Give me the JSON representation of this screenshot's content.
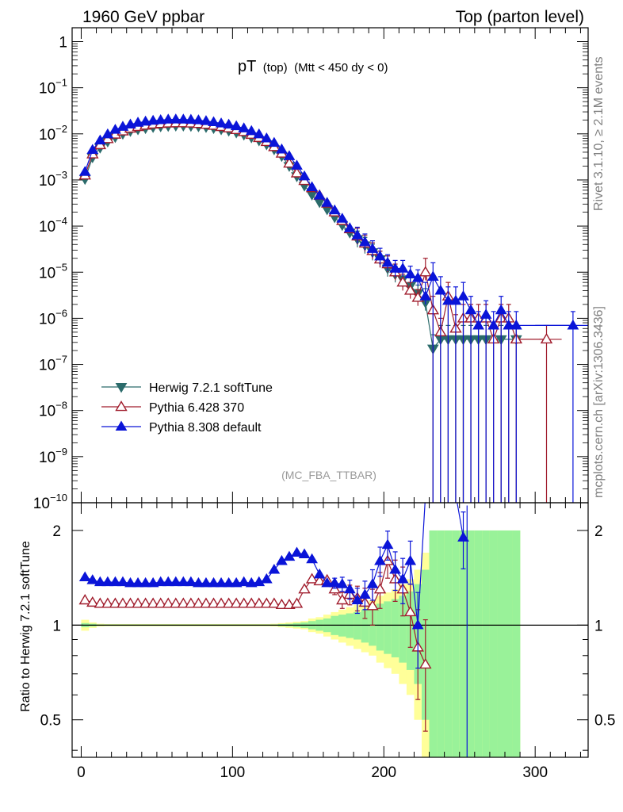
{
  "header": {
    "left": "1960 GeV ppbar",
    "right": "Top (parton level)"
  },
  "plot_title": {
    "main": "pT",
    "sub1": "(top)",
    "sub2": "(Mtt < 450 dy < 0)"
  },
  "analysis_tag": "(MC_FBA_TTBAR)",
  "side_labels": {
    "rivet": "Rivet 3.1.10, ≥ 2.1M events",
    "mcplots": "mcplots.cern.ch [arXiv:1306.3436]"
  },
  "ratio_ylabel": "Ratio to Herwig 7.2.1 softTune",
  "colors": {
    "herwig": "#2b6b6b",
    "pythia6": "#a01c2c",
    "pythia8": "#0a14d8",
    "band_inner": "#99f299",
    "band_outer": "#ffff99"
  },
  "chart_data": {
    "type": "line",
    "xlim": [
      -6,
      335
    ],
    "main_ylim": [
      1e-10,
      2
    ],
    "ratio_ylim": [
      0.38,
      2.45
    ],
    "main_ytick_values": [
      1,
      0.1,
      0.01,
      0.001,
      0.0001,
      1e-05,
      1e-06,
      1e-07,
      1e-08,
      1e-09,
      1e-10
    ],
    "main_ytick_labels": [
      {
        "base": "1",
        "exp": ""
      },
      {
        "base": "10",
        "exp": "−1"
      },
      {
        "base": "10",
        "exp": "−2"
      },
      {
        "base": "10",
        "exp": "−3"
      },
      {
        "base": "10",
        "exp": "−4"
      },
      {
        "base": "10",
        "exp": "−5"
      },
      {
        "base": "10",
        "exp": "−6"
      },
      {
        "base": "10",
        "exp": "−7"
      },
      {
        "base": "10",
        "exp": "−8"
      },
      {
        "base": "10",
        "exp": "−9"
      },
      {
        "base": "10",
        "exp": "−10"
      }
    ],
    "ratio_ytick_values": [
      0.5,
      1,
      2
    ],
    "ratio_ytick_labels": [
      "0.5",
      "1",
      "2"
    ],
    "xticks": [
      0,
      100,
      200,
      300
    ],
    "xtick_labels": [
      "0",
      "100",
      "200",
      "300"
    ],
    "x": [
      2.5,
      7.5,
      12.5,
      17.5,
      22.5,
      27.5,
      32.5,
      37.5,
      42.5,
      47.5,
      52.5,
      57.5,
      62.5,
      67.5,
      72.5,
      77.5,
      82.5,
      87.5,
      92.5,
      97.5,
      102.5,
      107.5,
      112.5,
      117.5,
      122.5,
      127.5,
      132.5,
      137.5,
      142.5,
      147.5,
      152.5,
      157.5,
      162.5,
      167.5,
      172.5,
      177.5,
      182.5,
      187.5,
      192.5,
      197.5,
      202.5,
      207.5,
      212.5,
      217.5,
      222.5,
      227.5,
      232.5,
      237.5,
      242.5,
      247.5,
      252.5,
      257.5,
      262.5,
      267.5,
      272.5,
      277.5,
      282.5,
      287.5
    ],
    "legend": [
      {
        "key": "herwig",
        "label": "Herwig 7.2.1 softTune"
      },
      {
        "key": "pythia6",
        "label": "Pythia 6.428 370"
      },
      {
        "key": "pythia8",
        "label": "Pythia 8.308 default"
      }
    ],
    "series": [
      {
        "key": "herwig",
        "name": "Herwig 7.2.1 softTune",
        "marker": "triangle-down",
        "values": [
          0.00105,
          0.0031,
          0.005,
          0.0068,
          0.0085,
          0.01,
          0.0115,
          0.0125,
          0.0133,
          0.014,
          0.0145,
          0.0148,
          0.015,
          0.015,
          0.0148,
          0.0145,
          0.014,
          0.0133,
          0.0125,
          0.0117,
          0.0107,
          0.0096,
          0.0084,
          0.0072,
          0.0059,
          0.0046,
          0.0033,
          0.002,
          0.0012,
          0.00075,
          0.00048,
          0.00033,
          0.00023,
          0.000155,
          0.000105,
          7.2e-05,
          5.2e-05,
          3.8e-05,
          2.7e-05,
          1.9e-05,
          1.2e-05,
          9e-06,
          7e-06,
          5e-06,
          3.5e-06,
          2.2e-06,
          2.2e-07,
          3.5e-07,
          3.5e-07,
          3.5e-07,
          3.5e-07,
          3.5e-07,
          3.5e-07,
          3.5e-07,
          null,
          3.5e-07,
          null,
          3.5e-07
        ],
        "ratio": [
          1,
          1,
          1,
          1,
          1,
          1,
          1,
          1,
          1,
          1,
          1,
          1,
          1,
          1,
          1,
          1,
          1,
          1,
          1,
          1,
          1,
          1,
          1,
          1,
          1,
          1,
          1,
          1,
          1,
          1,
          1,
          1,
          1,
          1,
          1,
          1,
          1,
          1,
          1,
          1,
          1,
          1,
          1,
          1,
          1,
          1,
          1,
          1,
          1,
          1,
          1,
          1,
          1,
          1,
          1,
          1,
          1,
          1
        ]
      },
      {
        "key": "pythia6",
        "name": "Pythia 6.428 370",
        "marker": "triangle-up-open",
        "values": [
          0.00126,
          0.00362,
          0.00574,
          0.00774,
          0.0097,
          0.0114,
          0.0131,
          0.0142,
          0.0152,
          0.016,
          0.0165,
          0.0169,
          0.0171,
          0.0171,
          0.0169,
          0.0165,
          0.0159,
          0.0151,
          0.0142,
          0.0133,
          0.0122,
          0.011,
          0.0096,
          0.0082,
          0.0067,
          0.0052,
          0.00376,
          0.00228,
          0.0014,
          0.00096,
          0.00067,
          0.00046,
          0.00031,
          0.0002,
          0.00013,
          8.6e-05,
          6e-05,
          4.2e-05,
          2.9e-05,
          1.9e-05,
          1.5e-05,
          1e-05,
          6e-06,
          4e-06,
          2.8e-06,
          1e-05,
          1.5e-06,
          5e-07,
          3e-06,
          6e-07,
          1e-06,
          1e-06,
          1e-06,
          1e-06,
          3.5e-07,
          1e-06,
          1e-06,
          3.5e-07
        ],
        "extra_points": [
          {
            "x": 307.5,
            "y": 3.5e-07
          }
        ],
        "ratio": [
          1.2,
          1.18,
          1.17,
          1.17,
          1.17,
          1.17,
          1.17,
          1.17,
          1.17,
          1.17,
          1.17,
          1.17,
          1.17,
          1.17,
          1.17,
          1.17,
          1.17,
          1.17,
          1.17,
          1.17,
          1.17,
          1.17,
          1.17,
          1.17,
          1.17,
          1.17,
          1.16,
          1.16,
          1.17,
          1.3,
          1.4,
          1.38,
          1.39,
          1.3,
          1.2,
          1.25,
          1.22,
          1.18,
          1.15,
          1.3,
          1.6,
          1.4,
          1.3,
          1.1,
          0.85,
          0.75
        ]
      },
      {
        "key": "pythia8",
        "name": "Pythia 8.308 default",
        "marker": "triangle-up",
        "values": [
          0.0015,
          0.0045,
          0.0072,
          0.0098,
          0.0123,
          0.0143,
          0.016,
          0.0175,
          0.0185,
          0.0193,
          0.0199,
          0.0205,
          0.0206,
          0.0205,
          0.0202,
          0.0198,
          0.019,
          0.018,
          0.0169,
          0.0159,
          0.0147,
          0.0132,
          0.0115,
          0.0098,
          0.008,
          0.0064,
          0.0046,
          0.0033,
          0.00205,
          0.0012,
          0.0007,
          0.00046,
          0.00032,
          0.00022,
          0.000145,
          9e-05,
          6.3e-05,
          4.5e-05,
          3.2e-05,
          2.2e-05,
          1.6e-05,
          1.2e-05,
          1.2e-05,
          9e-06,
          7.5e-06,
          3e-06,
          8e-06,
          4e-06,
          2.4e-06,
          2.4e-06,
          3e-06,
          1.5e-06,
          7e-07,
          1.2e-06,
          7e-07,
          1.5e-06,
          7e-07,
          7e-07
        ],
        "extra_points": [
          {
            "x": 325,
            "y": 7e-07
          }
        ],
        "ratio": [
          1.42,
          1.39,
          1.37,
          1.37,
          1.37,
          1.37,
          1.36,
          1.36,
          1.36,
          1.36,
          1.37,
          1.37,
          1.37,
          1.37,
          1.37,
          1.36,
          1.36,
          1.36,
          1.36,
          1.36,
          1.36,
          1.37,
          1.36,
          1.37,
          1.4,
          1.5,
          1.6,
          1.65,
          1.7,
          1.68,
          1.62,
          1.45,
          1.36,
          1.36,
          1.35,
          1.3,
          1.2,
          1.25,
          1.35,
          1.6,
          1.8,
          1.5,
          1.4,
          1.6,
          1.0,
          2.6,
          2.6,
          2.6,
          2.6,
          2.6,
          1.9
        ]
      }
    ],
    "bands": {
      "inner": [
        0.015,
        0.01,
        0.005,
        0.005,
        0.005,
        0.005,
        0.005,
        0.005,
        0.005,
        0.005,
        0.005,
        0.005,
        0.005,
        0.005,
        0.005,
        0.005,
        0.005,
        0.005,
        0.005,
        0.005,
        0.005,
        0.005,
        0.005,
        0.005,
        0.005,
        0.005,
        0.008,
        0.01,
        0.015,
        0.02,
        0.03,
        0.04,
        0.05,
        0.07,
        0.08,
        0.09,
        0.1,
        0.12,
        0.14,
        0.17,
        0.19,
        0.21,
        0.24,
        0.28,
        0.35,
        0.5,
        1,
        1,
        1,
        1,
        1,
        1,
        1,
        1,
        1,
        1,
        1,
        1
      ],
      "outer": [
        0.04,
        0.02,
        0.01,
        0.008,
        0.008,
        0.008,
        0.008,
        0.008,
        0.008,
        0.008,
        0.008,
        0.008,
        0.008,
        0.008,
        0.008,
        0.008,
        0.008,
        0.008,
        0.008,
        0.008,
        0.008,
        0.008,
        0.008,
        0.008,
        0.008,
        0.01,
        0.015,
        0.02,
        0.025,
        0.03,
        0.05,
        0.06,
        0.08,
        0.1,
        0.12,
        0.14,
        0.16,
        0.18,
        0.2,
        0.24,
        0.27,
        0.3,
        0.35,
        0.4,
        0.5,
        0.7,
        1,
        1,
        1,
        1,
        1,
        1,
        1,
        1,
        1,
        1,
        1,
        1
      ]
    }
  }
}
